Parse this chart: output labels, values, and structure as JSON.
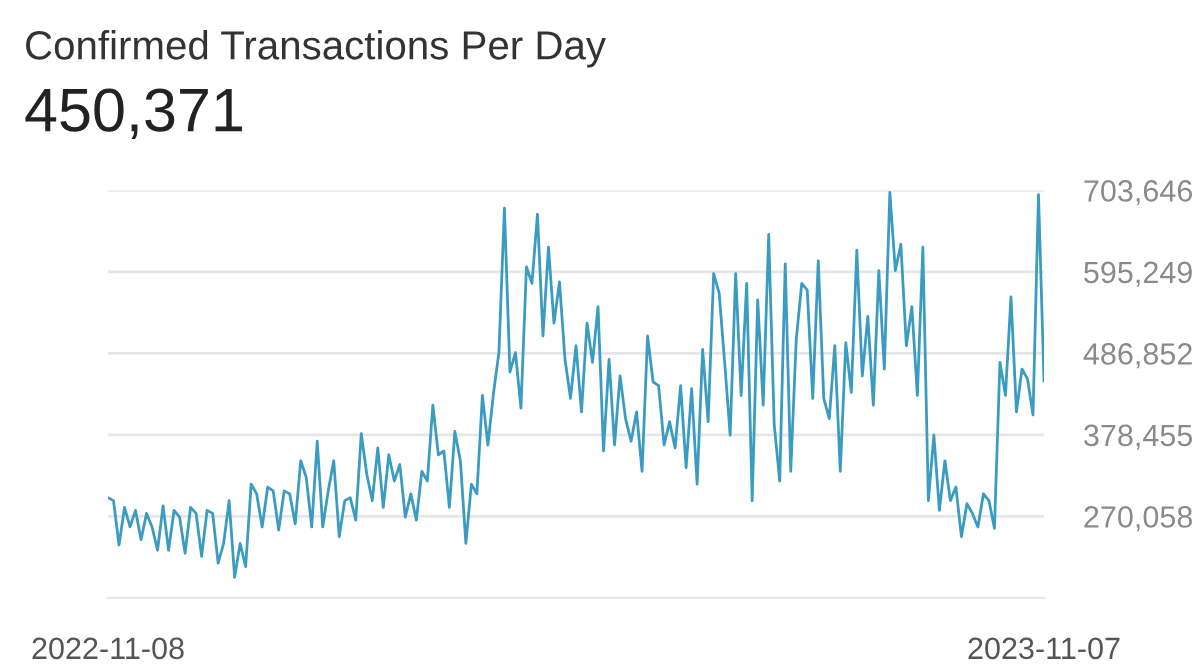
{
  "chart_data": {
    "type": "line",
    "title": "Confirmed Transactions Per Day",
    "subtitle": "450,371",
    "categories": [
      "2022-11-08",
      null,
      null,
      null,
      null,
      null,
      null,
      null,
      null,
      null,
      null,
      null,
      null,
      null,
      null,
      null,
      null,
      null,
      null,
      null,
      null,
      null,
      null,
      null,
      null,
      null,
      null,
      null,
      null,
      null,
      null,
      null,
      null,
      null,
      null,
      null,
      null,
      null,
      null,
      null,
      null,
      null,
      null,
      null,
      null,
      null,
      null,
      null,
      null,
      null,
      null,
      null,
      null,
      null,
      null,
      null,
      null,
      null,
      null,
      null,
      null,
      null,
      null,
      null,
      null,
      null,
      null,
      null,
      null,
      null,
      null,
      null,
      null,
      null,
      null,
      null,
      null,
      null,
      null,
      null,
      null,
      null,
      null,
      null,
      null,
      null,
      null,
      null,
      null,
      null,
      null,
      null,
      null,
      null,
      null,
      null,
      null,
      null,
      null,
      null,
      null,
      null,
      null,
      null,
      null,
      null,
      null,
      null,
      null,
      null,
      null,
      null,
      null,
      null,
      null,
      null,
      null,
      null,
      null,
      null,
      null,
      null,
      null,
      null,
      null,
      null,
      null,
      null,
      null,
      null,
      null,
      null,
      null,
      null,
      null,
      null,
      null,
      null,
      null,
      null,
      null,
      null,
      null,
      null,
      null,
      null,
      null,
      null,
      null,
      null,
      null,
      null,
      null,
      null,
      null,
      null,
      null,
      null,
      null,
      null,
      null,
      null,
      null,
      null,
      null,
      null,
      null,
      null,
      null,
      null,
      "2023-11-07"
    ],
    "series": [
      {
        "color": "#3a9cc0",
        "values": [
          295000,
          291000,
          232000,
          282000,
          256000,
          278000,
          239000,
          274000,
          256000,
          225000,
          284000,
          225000,
          278000,
          269000,
          221000,
          282000,
          274000,
          217000,
          278000,
          274000,
          208000,
          234000,
          291000,
          189000,
          234000,
          203000,
          313000,
          300000,
          256000,
          309000,
          304000,
          252000,
          304000,
          300000,
          260000,
          344000,
          322000,
          256000,
          370000,
          256000,
          304000,
          344000,
          243000,
          291000,
          295000,
          265000,
          380000,
          326000,
          291000,
          361000,
          282000,
          352000,
          317000,
          339000,
          269000,
          300000,
          265000,
          330000,
          317000,
          418000,
          352000,
          357000,
          282000,
          383000,
          344000,
          234000,
          313000,
          300000,
          431000,
          365000,
          433000,
          488000,
          680000,
          462000,
          488000,
          414000,
          602000,
          580000,
          672000,
          510000,
          628000,
          527000,
          582000,
          479000,
          427000,
          497000,
          409000,
          527000,
          475000,
          549000,
          357000,
          479000,
          365000,
          457000,
          400000,
          370000,
          409000,
          330000,
          510000,
          449000,
          444000,
          365000,
          396000,
          361000,
          444000,
          335000,
          440000,
          313000,
          492000,
          396000,
          593000,
          567000,
          475000,
          378000,
          593000,
          431000,
          580000,
          291000,
          558000,
          418000,
          645000,
          392000,
          317000,
          606000,
          330000,
          505000,
          580000,
          571000,
          427000,
          610000,
          427000,
          400000,
          497000,
          330000,
          501000,
          435000,
          624000,
          457000,
          536000,
          418000,
          597000,
          466000,
          701000,
          597000,
          632000,
          497000,
          549000,
          431000,
          628000,
          291000,
          378000,
          278000,
          344000,
          291000,
          309000,
          243000,
          287000,
          274000,
          256000,
          300000,
          291000,
          254000,
          475000,
          431000,
          562000,
          409000,
          466000,
          453000,
          405000,
          698000,
          450000
        ]
      }
    ],
    "ylim": [
      161661,
      703646
    ],
    "yticks": [
      {
        "value": 270058,
        "label": "270,058"
      },
      {
        "value": 378455,
        "label": "378,455"
      },
      {
        "value": 486852,
        "label": "486,852"
      },
      {
        "value": 595249,
        "label": "595,249"
      },
      {
        "value": 703646,
        "label": "703,646"
      }
    ],
    "grid": "y",
    "marker": "none",
    "line_style": "solid"
  }
}
